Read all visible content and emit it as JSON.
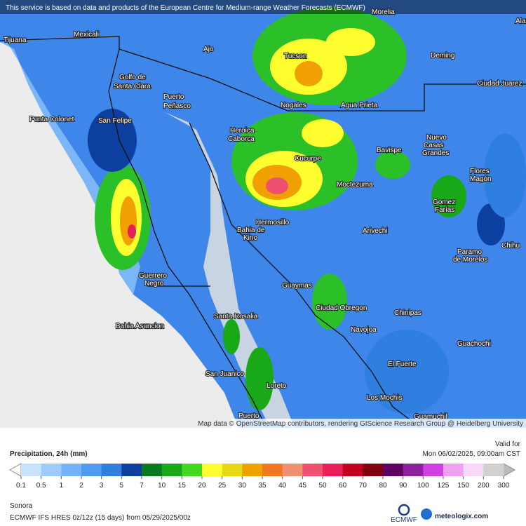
{
  "header": {
    "notice": "This service is based on data and products of the European Centre for Medium-range Weather Forecasts (ECMWF)"
  },
  "map": {
    "places": [
      "Morelia",
      "Alam",
      "Tijuana",
      "Mexicali",
      "Ajo",
      "Tucson",
      "Deming",
      "Ciudad Juarez",
      "Golfo de",
      "Santa Clara",
      "Puerto",
      "Peñasco",
      "Nogales",
      "Agua Prieta",
      "Punta Colonet",
      "San Felipe",
      "Heroica",
      "Caborca",
      "Nuevo",
      "Casas",
      "Grandes",
      "Bavispe",
      "Cucurpe",
      "Flores",
      "Magón",
      "Moctezuma",
      "Gomez",
      "Farías",
      "Hermosillo",
      "Bahia de",
      "Kino",
      "Arivechi",
      "Paramo",
      "de Morelos",
      "Chihu",
      "Guerrero",
      "Negro",
      "Guaymas",
      "Ciudad Obregon",
      "Chinipas",
      "Santa Rosalia",
      "Navojoa",
      "Bahia Asuncion",
      "Guachochi",
      "El Fuerte",
      "San Juanico",
      "Loreto",
      "Los Mochis",
      "Guamuchil",
      "Puerto"
    ],
    "attribution": "Map data © OpenStreetMap contributors, rendering GIScience Research Group @ Heidelberg University"
  },
  "legend": {
    "title": "Precipitation, 24h (mm)",
    "valid_label": "Valid for",
    "valid_time": "Mon 06/02/2025, 09:00am CST",
    "levels": [
      0.1,
      0.5,
      1,
      2,
      3,
      5,
      7,
      10,
      15,
      20,
      25,
      30,
      35,
      40,
      45,
      50,
      60,
      70,
      80,
      90,
      100,
      125,
      150,
      200,
      300
    ],
    "colors": [
      "#c6e2ff",
      "#9dcbff",
      "#74b4ff",
      "#4d9cf2",
      "#2e7fe0",
      "#0d3fa0",
      "#087a1f",
      "#18a818",
      "#40d820",
      "#ffff30",
      "#e8d818",
      "#f0a000",
      "#f07820",
      "#f09070",
      "#f05070",
      "#e8205a",
      "#c00020",
      "#800010",
      "#600060",
      "#9020a0",
      "#d040e0",
      "#f0a0f0",
      "#f8d8f8",
      "#d0d0d0"
    ]
  },
  "footer": {
    "region": "Sonora",
    "model": "ECMWF IFS HRES 0z/12z (15 days) from 05/29/2025/00z",
    "ecmwf": "ECMWF",
    "brand": "meteologix.com"
  }
}
